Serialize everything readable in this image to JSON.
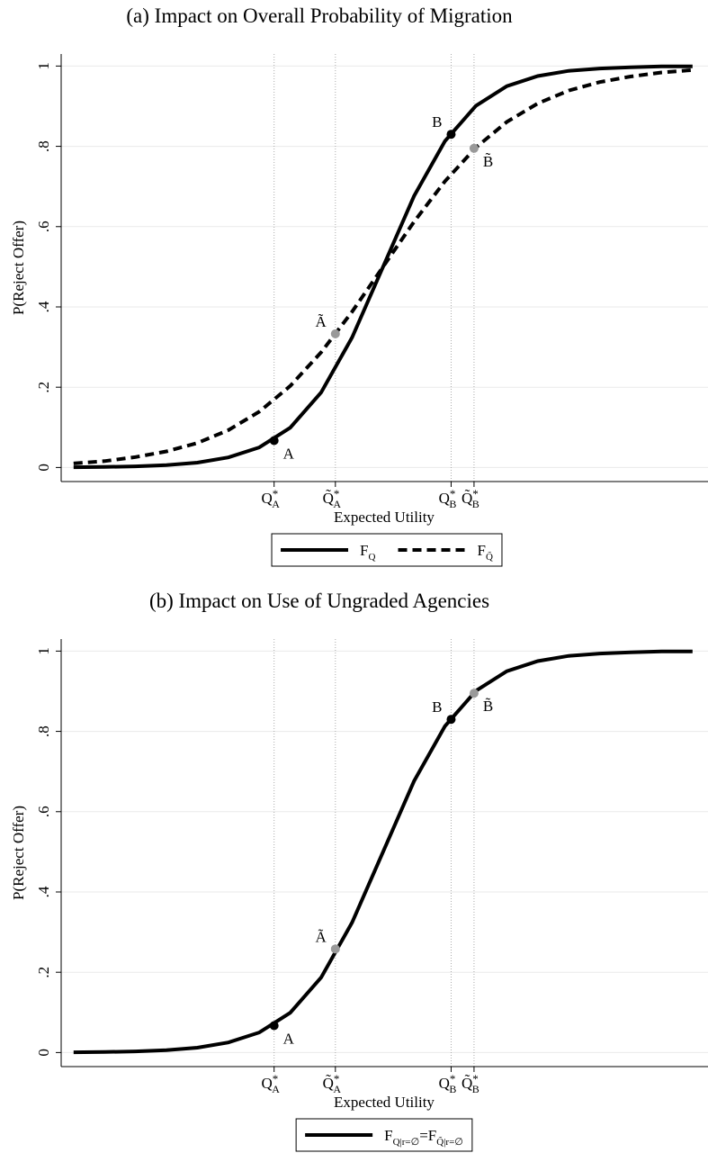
{
  "chart_data": [
    {
      "type": "line",
      "title": "(a) Impact on Overall Probability of Migration",
      "xlabel": "Expected Utility",
      "ylabel": "P(Reject Offer)",
      "x": [
        0,
        5,
        10,
        15,
        20,
        25,
        30,
        35,
        40,
        45,
        50,
        55,
        60,
        65,
        70,
        75,
        80,
        85,
        90,
        95,
        100
      ],
      "series": [
        {
          "name_parts": [
            {
              "text": "F"
            },
            {
              "text": "Q",
              "sub": true
            }
          ],
          "color": "#000000",
          "dash": "solid",
          "values": [
            0.0006,
            0.0013,
            0.0028,
            0.0058,
            0.012,
            0.025,
            0.05,
            0.099,
            0.187,
            0.324,
            0.5,
            0.676,
            0.813,
            0.901,
            0.95,
            0.975,
            0.988,
            0.994,
            0.997,
            0.999,
            0.999
          ]
        },
        {
          "name_parts": [
            {
              "text": "F"
            },
            {
              "text": "Q̃",
              "sub": true
            }
          ],
          "color": "#000000",
          "dash": "dashed",
          "values": [
            0.01,
            0.016,
            0.026,
            0.04,
            0.061,
            0.093,
            0.139,
            0.203,
            0.287,
            0.388,
            0.5,
            0.612,
            0.713,
            0.797,
            0.861,
            0.907,
            0.939,
            0.96,
            0.974,
            0.984,
            0.99
          ]
        }
      ],
      "points": [
        {
          "label": "A",
          "x": 32.4,
          "y": 0.067,
          "color": "#000000",
          "label_side": "below-right"
        },
        {
          "label": "Ã",
          "x": 42.3,
          "y": 0.333,
          "color": "#999999",
          "label_side": "above-left"
        },
        {
          "label": "B",
          "x": 61,
          "y": 0.83,
          "color": "#000000",
          "label_side": "above-left"
        },
        {
          "label": "B̃",
          "x": 64.7,
          "y": 0.795,
          "color": "#999999",
          "label_side": "below-right"
        }
      ],
      "xlim": [
        -2,
        102.5
      ],
      "xticks": [
        {
          "value": 32.4,
          "label": "Q",
          "sup": "*",
          "sub": "A"
        },
        {
          "value": 42.3,
          "label": "Q̃",
          "sup": "*",
          "sub": "A"
        },
        {
          "value": 61,
          "label": "Q",
          "sup": "*",
          "sub": "B"
        },
        {
          "value": 64.7,
          "label": "Q̃",
          "sup": "*",
          "sub": "B"
        }
      ],
      "ylim": [
        -0.035,
        1.03
      ],
      "yticks": [
        0,
        {
          "value": 0.2,
          "label": ".2"
        },
        {
          "value": 0.4,
          "label": ".4"
        },
        {
          "value": 0.6,
          "label": ".6"
        },
        {
          "value": 0.8,
          "label": ".8"
        },
        1
      ],
      "grid": true,
      "legend": "bottom"
    },
    {
      "type": "line",
      "title": "(b) Impact on Use of Ungraded Agencies",
      "xlabel": "Expected Utility",
      "ylabel": "P(Reject Offer)",
      "x": [
        0,
        5,
        10,
        15,
        20,
        25,
        30,
        35,
        40,
        45,
        50,
        55,
        60,
        65,
        70,
        75,
        80,
        85,
        90,
        95,
        100
      ],
      "series": [
        {
          "name_parts": [
            {
              "text": "F"
            },
            {
              "text": "Q|r=∅",
              "sub": true
            },
            {
              "text": "=F"
            },
            {
              "text": "Q̃|r=∅",
              "sub": true
            }
          ],
          "color": "#000000",
          "dash": "solid",
          "values": [
            0.0006,
            0.0013,
            0.0028,
            0.0058,
            0.012,
            0.025,
            0.05,
            0.099,
            0.187,
            0.324,
            0.5,
            0.676,
            0.813,
            0.901,
            0.95,
            0.975,
            0.988,
            0.994,
            0.997,
            0.999,
            0.999
          ]
        }
      ],
      "points": [
        {
          "label": "A",
          "x": 32.4,
          "y": 0.067,
          "color": "#000000",
          "label_side": "below-right"
        },
        {
          "label": "Ã",
          "x": 42.3,
          "y": 0.258,
          "color": "#999999",
          "label_side": "above-left"
        },
        {
          "label": "B",
          "x": 61,
          "y": 0.83,
          "color": "#000000",
          "label_side": "above-left"
        },
        {
          "label": "B̃",
          "x": 64.7,
          "y": 0.895,
          "color": "#999999",
          "label_side": "below-right"
        }
      ],
      "xlim": [
        -2,
        102.5
      ],
      "xticks": [
        {
          "value": 32.4,
          "label": "Q",
          "sup": "*",
          "sub": "A"
        },
        {
          "value": 42.3,
          "label": "Q̃",
          "sup": "*",
          "sub": "A"
        },
        {
          "value": 61,
          "label": "Q",
          "sup": "*",
          "sub": "B"
        },
        {
          "value": 64.7,
          "label": "Q̃",
          "sup": "*",
          "sub": "B"
        }
      ],
      "ylim": [
        -0.035,
        1.03
      ],
      "yticks": [
        0,
        {
          "value": 0.2,
          "label": ".2"
        },
        {
          "value": 0.4,
          "label": ".4"
        },
        {
          "value": 0.6,
          "label": ".6"
        },
        {
          "value": 0.8,
          "label": ".8"
        },
        1
      ],
      "grid": true,
      "legend": "bottom"
    }
  ]
}
